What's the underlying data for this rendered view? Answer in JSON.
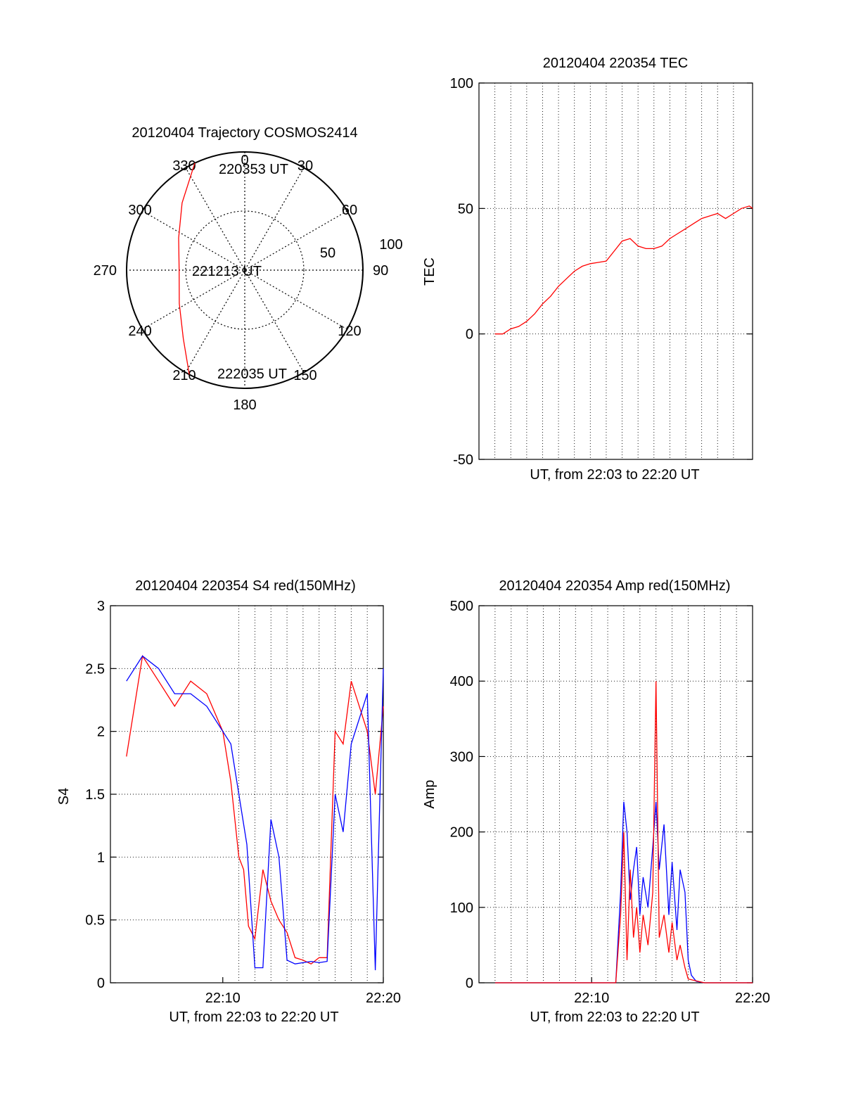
{
  "chart_data": [
    {
      "type": "polar",
      "title": "20120404 Trajectory COSMOS2414",
      "azimuth_labels": [
        "0",
        "30",
        "60",
        "90",
        "120",
        "150",
        "180",
        "210",
        "240",
        "270",
        "300",
        "330"
      ],
      "radial_labels": [
        "50",
        "100"
      ],
      "track_color": "#ff0000",
      "track_labels": [
        {
          "text": "220353 UT",
          "az": 335,
          "elev": 0
        },
        {
          "text": "221213 UT",
          "az": 270,
          "elev": 40
        },
        {
          "text": "222035 UT",
          "az": 208,
          "elev": 0
        }
      ],
      "track": [
        {
          "az": 335,
          "elev": 0
        },
        {
          "az": 317,
          "elev": 20
        },
        {
          "az": 296,
          "elev": 34
        },
        {
          "az": 270,
          "elev": 40
        },
        {
          "az": 243,
          "elev": 34
        },
        {
          "az": 222,
          "elev": 20
        },
        {
          "az": 208,
          "elev": 0
        }
      ]
    },
    {
      "type": "line",
      "title": "20120404 220354 TEC",
      "xlabel": "UT, from 22:03 to 22:20 UT",
      "ylabel": "TEC",
      "xlim": [
        0,
        17.2
      ],
      "ylim": [
        -50,
        100
      ],
      "yticks": [
        "-50",
        "0",
        "50",
        "100"
      ],
      "xticks": [],
      "grid": true,
      "series": [
        {
          "color": "#ff0000",
          "x": [
            1.0,
            1.5,
            2.0,
            2.5,
            3.0,
            3.5,
            4.0,
            4.5,
            5.0,
            5.5,
            6.0,
            6.5,
            7.0,
            7.5,
            8.0,
            8.5,
            9.0,
            9.5,
            10.0,
            10.5,
            11.0,
            11.5,
            12.0,
            12.5,
            13.0,
            13.5,
            14.0,
            14.5,
            15.0,
            15.5,
            16.0,
            16.5,
            17.0,
            17.2
          ],
          "values": [
            0,
            0,
            2,
            3,
            5,
            8,
            12,
            15,
            19,
            22,
            25,
            27,
            28,
            28.5,
            29,
            33,
            37,
            38,
            35,
            34,
            34,
            35,
            38,
            40,
            42,
            44,
            46,
            47,
            48,
            46,
            48,
            50,
            51,
            50
          ]
        }
      ]
    },
    {
      "type": "line",
      "title": "20120404 220354 S4 red(150MHz)",
      "xlabel": "UT, from 22:03 to 22:20 UT",
      "ylabel": "S4",
      "xlim": [
        0,
        17
      ],
      "ylim": [
        0,
        3
      ],
      "yticks": [
        "0",
        "0.5",
        "1",
        "1.5",
        "2",
        "2.5",
        "3"
      ],
      "xticks": [
        {
          "x": 7,
          "label": "22:10"
        },
        {
          "x": 17,
          "label": "22:20"
        }
      ],
      "grid": true,
      "series": [
        {
          "color": "#ff0000",
          "x": [
            1.0,
            2.0,
            3.0,
            4.0,
            5.0,
            6.0,
            7.0,
            7.5,
            8.0,
            8.3,
            8.6,
            9.0,
            9.5,
            10.0,
            10.5,
            11.0,
            11.5,
            12.0,
            12.5,
            13.0,
            13.5,
            14.0,
            14.5,
            15.0,
            15.5,
            16.0,
            16.5,
            17.0
          ],
          "values": [
            1.8,
            2.6,
            2.4,
            2.2,
            2.4,
            2.3,
            2.0,
            1.6,
            1.0,
            0.9,
            0.45,
            0.35,
            0.9,
            0.65,
            0.5,
            0.4,
            0.2,
            0.18,
            0.15,
            0.2,
            0.2,
            2.0,
            1.9,
            2.4,
            2.2,
            2.0,
            1.5,
            2.2
          ]
        },
        {
          "color": "#0000ff",
          "x": [
            1.0,
            2.0,
            3.0,
            4.0,
            5.0,
            6.0,
            7.0,
            7.5,
            8.0,
            8.5,
            9.0,
            9.5,
            10.0,
            10.5,
            11.0,
            11.5,
            12.0,
            12.5,
            13.0,
            13.5,
            14.0,
            14.5,
            15.0,
            15.5,
            16.0,
            16.5,
            17.0
          ],
          "values": [
            2.4,
            2.6,
            2.5,
            2.3,
            2.3,
            2.2,
            2.0,
            1.9,
            1.5,
            1.1,
            0.12,
            0.12,
            1.3,
            1.0,
            0.18,
            0.15,
            0.16,
            0.17,
            0.16,
            0.17,
            1.5,
            1.2,
            1.9,
            2.1,
            2.3,
            0.1,
            2.5
          ]
        }
      ]
    },
    {
      "type": "line",
      "title": "20120404 220354 Amp red(150MHz)",
      "xlabel": "UT, from 22:03 to 22:20 UT",
      "ylabel": "Amp",
      "xlim": [
        0,
        17
      ],
      "ylim": [
        0,
        500
      ],
      "yticks": [
        "0",
        "100",
        "200",
        "300",
        "400",
        "500"
      ],
      "xticks": [
        {
          "x": 7,
          "label": "22:10"
        },
        {
          "x": 17,
          "label": "22:20"
        }
      ],
      "grid": true,
      "series": [
        {
          "color": "#ff0000",
          "x": [
            1.0,
            7.0,
            8.5,
            8.8,
            9.0,
            9.2,
            9.4,
            9.6,
            9.8,
            10.0,
            10.2,
            10.5,
            10.8,
            11.0,
            11.2,
            11.5,
            11.8,
            12.0,
            12.3,
            12.5,
            12.8,
            13.0,
            14.0,
            17.0
          ],
          "values": [
            0,
            0,
            0,
            90,
            200,
            30,
            150,
            60,
            100,
            40,
            90,
            50,
            120,
            400,
            60,
            90,
            40,
            80,
            30,
            50,
            20,
            5,
            0,
            0
          ]
        },
        {
          "color": "#0000ff",
          "x": [
            1.0,
            7.0,
            8.5,
            8.8,
            9.0,
            9.2,
            9.4,
            9.6,
            9.8,
            10.0,
            10.2,
            10.5,
            10.8,
            11.0,
            11.2,
            11.5,
            11.8,
            12.0,
            12.3,
            12.5,
            12.8,
            13.0,
            13.2,
            13.5,
            14.0,
            17.0
          ],
          "values": [
            0,
            0,
            0,
            120,
            240,
            200,
            110,
            150,
            180,
            90,
            140,
            100,
            180,
            240,
            150,
            210,
            90,
            160,
            70,
            150,
            120,
            30,
            10,
            2,
            0,
            0
          ]
        }
      ]
    }
  ]
}
